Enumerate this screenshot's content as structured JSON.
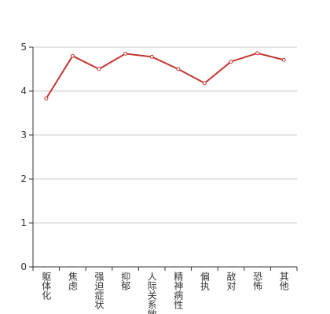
{
  "chart_data": {
    "type": "line",
    "categories": [
      "躯体化",
      "焦虑",
      "强迫症状",
      "抑郁",
      "人际关系敏感",
      "精神病性",
      "偏执",
      "敌对",
      "恐怖",
      "其他"
    ],
    "series": [
      {
        "color": "#c23531",
        "values": [
          3.83,
          4.8,
          4.5,
          4.85,
          4.78,
          4.5,
          4.18,
          4.67,
          4.86,
          4.71
        ]
      }
    ],
    "ylim": [
      0,
      5
    ],
    "yticks": [
      0,
      1,
      2,
      3,
      4,
      5
    ],
    "grid": true
  }
}
